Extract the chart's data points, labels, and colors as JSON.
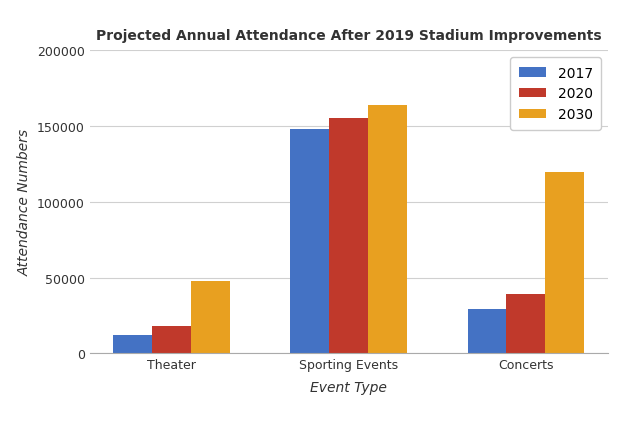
{
  "title": "Projected Annual Attendance After 2019 Stadium Improvements",
  "xlabel": "Event Type",
  "ylabel": "Attendance Numbers",
  "categories": [
    "Theater",
    "Sporting Events",
    "Concerts"
  ],
  "years": [
    "2017",
    "2020",
    "2030"
  ],
  "values": {
    "2017": [
      12000,
      148000,
      29000
    ],
    "2020": [
      18000,
      155000,
      39000
    ],
    "2030": [
      48000,
      164000,
      120000
    ]
  },
  "colors": {
    "2017": "#4472C4",
    "2020": "#C0392B",
    "2030": "#E8A020"
  },
  "ylim": [
    0,
    200000
  ],
  "yticks": [
    0,
    50000,
    100000,
    150000,
    200000
  ],
  "background_color": "#ffffff",
  "plot_bg_color": "#ffffff",
  "bar_width": 0.22,
  "legend_loc": "upper right",
  "title_fontsize": 10,
  "axis_label_fontsize": 10,
  "tick_fontsize": 9,
  "grid_color": "#d0d0d0"
}
